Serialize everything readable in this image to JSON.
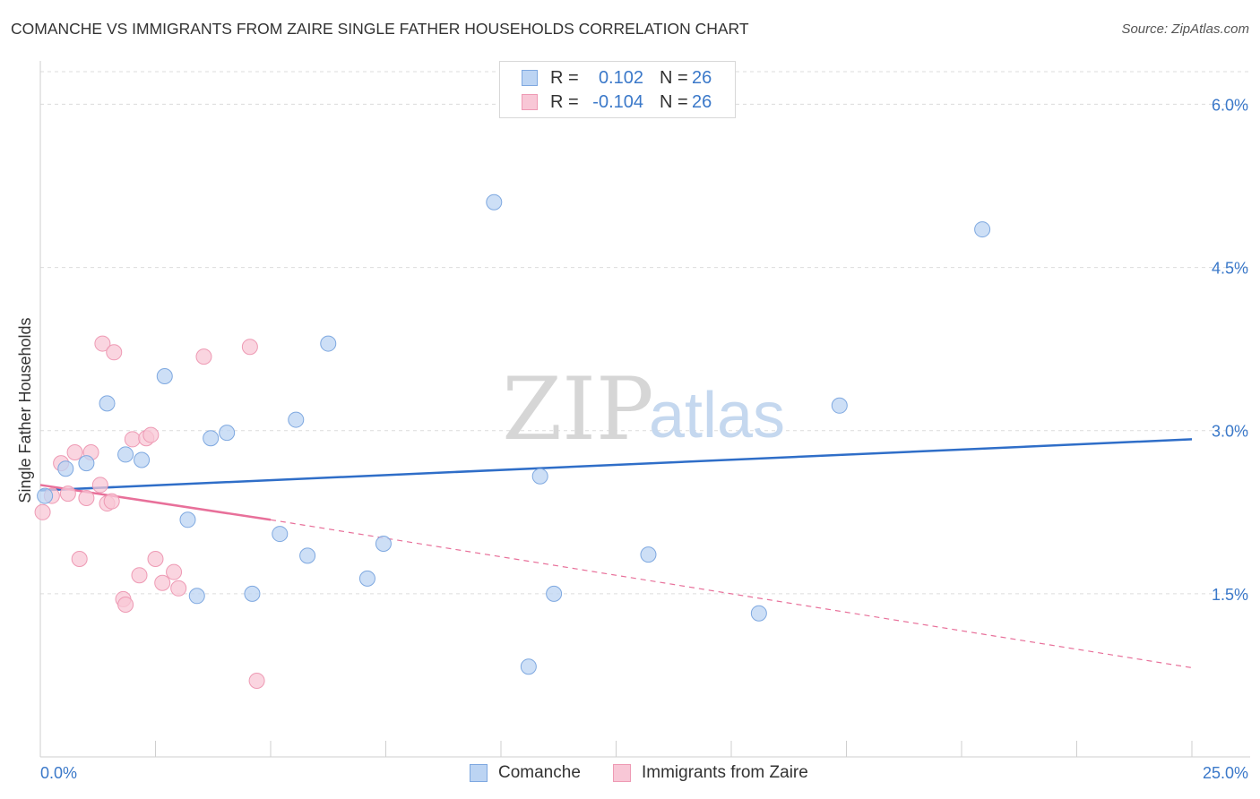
{
  "title": "COMANCHE VS IMMIGRANTS FROM ZAIRE SINGLE FATHER HOUSEHOLDS CORRELATION CHART",
  "source": "Source: ZipAtlas.com",
  "watermark": {
    "zip": "ZIP",
    "atlas": "atlas"
  },
  "legend": {
    "rows": [
      {
        "r_label": "R =",
        "r_value": "0.102",
        "n_label": "N =",
        "n_value": "26"
      },
      {
        "r_label": "R =",
        "r_value": "-0.104",
        "n_label": "N =",
        "n_value": "26"
      }
    ]
  },
  "colors": {
    "comanche_fill": "#bcd4f3",
    "comanche_stroke": "#7ea8e0",
    "comanche_line": "#2f6ec8",
    "zaire_fill": "#f8c7d6",
    "zaire_stroke": "#ee9ab4",
    "zaire_line": "#e8709a",
    "axis_text": "#3a78c9"
  },
  "chart_data": {
    "type": "scatter",
    "title": "COMANCHE VS IMMIGRANTS FROM ZAIRE SINGLE FATHER HOUSEHOLDS CORRELATION CHART",
    "xlabel": "",
    "ylabel": "Single Father Households",
    "xlim": [
      0,
      25
    ],
    "ylim": [
      0,
      6.3
    ],
    "x_tick_labels": [
      "0.0%",
      "25.0%"
    ],
    "y_ticks": [
      1.5,
      3.0,
      4.5,
      6.0
    ],
    "y_tick_labels": [
      "1.5%",
      "3.0%",
      "4.5%",
      "6.0%"
    ],
    "grid": true,
    "legend_position": "top-center",
    "series": [
      {
        "name": "Comanche",
        "r": 0.102,
        "n": 26,
        "trend": {
          "x": [
            0,
            25
          ],
          "y": [
            2.45,
            2.92
          ],
          "style": "solid"
        },
        "points": [
          {
            "x": 0.1,
            "y": 2.4
          },
          {
            "x": 0.55,
            "y": 2.65
          },
          {
            "x": 1.0,
            "y": 2.7
          },
          {
            "x": 1.45,
            "y": 3.25
          },
          {
            "x": 1.85,
            "y": 2.78
          },
          {
            "x": 2.2,
            "y": 2.73
          },
          {
            "x": 2.7,
            "y": 3.5
          },
          {
            "x": 3.2,
            "y": 2.18
          },
          {
            "x": 3.4,
            "y": 1.48
          },
          {
            "x": 3.7,
            "y": 2.93
          },
          {
            "x": 4.05,
            "y": 2.98
          },
          {
            "x": 4.6,
            "y": 1.5
          },
          {
            "x": 5.2,
            "y": 2.05
          },
          {
            "x": 5.55,
            "y": 3.1
          },
          {
            "x": 5.8,
            "y": 1.85
          },
          {
            "x": 6.25,
            "y": 3.8
          },
          {
            "x": 7.1,
            "y": 1.64
          },
          {
            "x": 7.45,
            "y": 1.96
          },
          {
            "x": 9.85,
            "y": 5.1
          },
          {
            "x": 10.6,
            "y": 0.83
          },
          {
            "x": 10.85,
            "y": 2.58
          },
          {
            "x": 11.15,
            "y": 1.5
          },
          {
            "x": 13.2,
            "y": 1.86
          },
          {
            "x": 15.6,
            "y": 1.32
          },
          {
            "x": 17.35,
            "y": 3.23
          },
          {
            "x": 20.45,
            "y": 4.85
          }
        ]
      },
      {
        "name": "Immigrants from Zaire",
        "r": -0.104,
        "n": 26,
        "trend": {
          "x": [
            0,
            5
          ],
          "y": [
            2.5,
            2.18
          ],
          "style": "solid",
          "extended_to": [
            25,
            0.82
          ],
          "extended_style": "dashed"
        },
        "points": [
          {
            "x": 0.05,
            "y": 2.25
          },
          {
            "x": 0.25,
            "y": 2.4
          },
          {
            "x": 0.45,
            "y": 2.7
          },
          {
            "x": 0.6,
            "y": 2.42
          },
          {
            "x": 0.75,
            "y": 2.8
          },
          {
            "x": 0.85,
            "y": 1.82
          },
          {
            "x": 1.0,
            "y": 2.38
          },
          {
            "x": 1.1,
            "y": 2.8
          },
          {
            "x": 1.3,
            "y": 2.5
          },
          {
            "x": 1.35,
            "y": 3.8
          },
          {
            "x": 1.45,
            "y": 2.33
          },
          {
            "x": 1.6,
            "y": 3.72
          },
          {
            "x": 1.8,
            "y": 1.45
          },
          {
            "x": 1.85,
            "y": 1.4
          },
          {
            "x": 2.0,
            "y": 2.92
          },
          {
            "x": 2.15,
            "y": 1.67
          },
          {
            "x": 2.3,
            "y": 2.93
          },
          {
            "x": 2.4,
            "y": 2.96
          },
          {
            "x": 2.5,
            "y": 1.82
          },
          {
            "x": 2.65,
            "y": 1.6
          },
          {
            "x": 2.9,
            "y": 1.7
          },
          {
            "x": 3.0,
            "y": 1.55
          },
          {
            "x": 3.55,
            "y": 3.68
          },
          {
            "x": 4.55,
            "y": 3.77
          },
          {
            "x": 4.7,
            "y": 0.7
          },
          {
            "x": 1.55,
            "y": 2.35
          }
        ]
      }
    ]
  }
}
